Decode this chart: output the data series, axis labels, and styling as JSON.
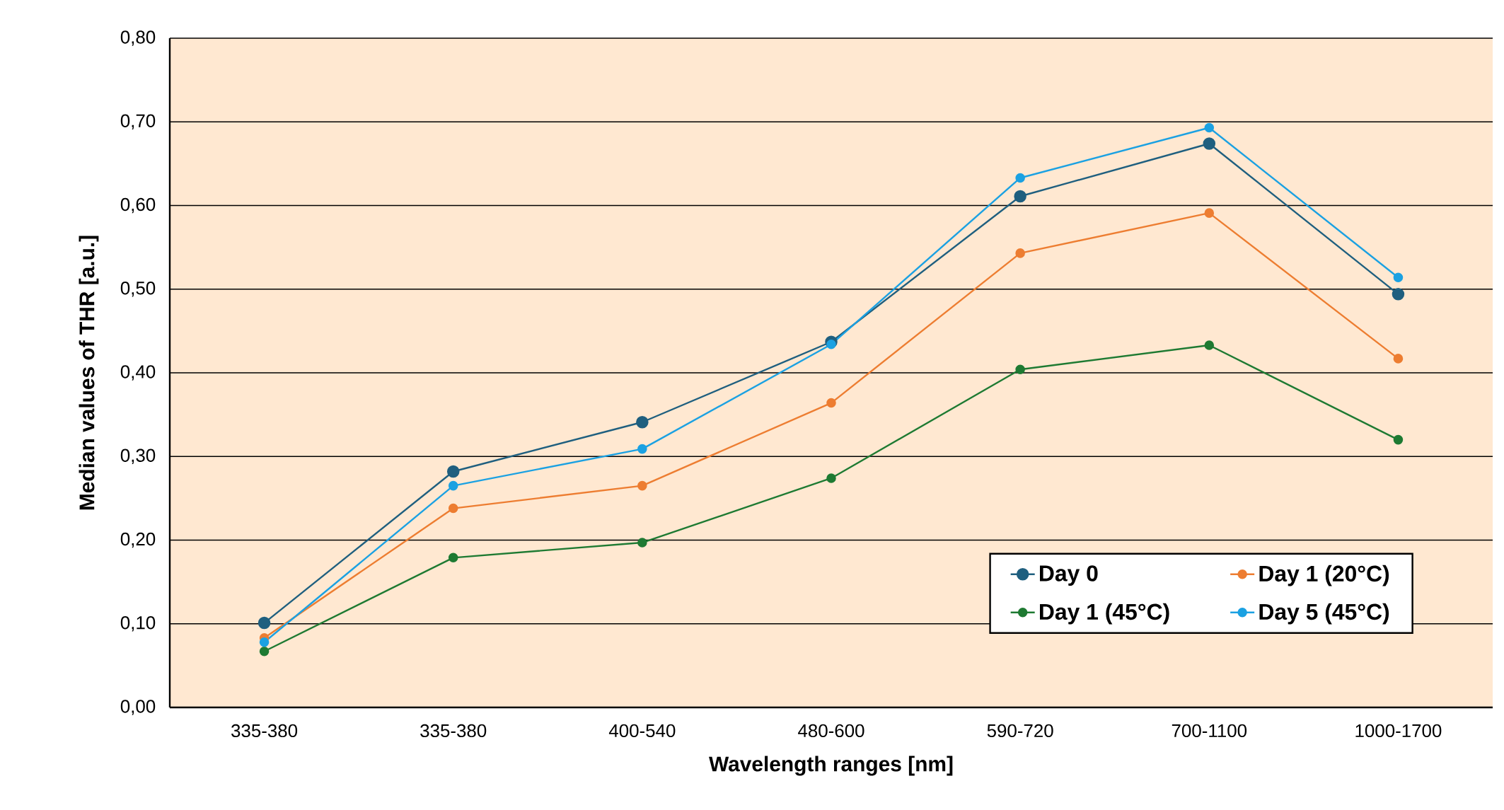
{
  "chart_data": {
    "type": "line",
    "xlabel": "Wavelength ranges [nm]",
    "ylabel": "Median values of THR [a.u.]",
    "categories": [
      "335-380",
      "335-380",
      "400-540",
      "480-600",
      "590-720",
      "700-1100",
      "1000-1700"
    ],
    "series": [
      {
        "name": "Day 0",
        "color": "#1f5f7f",
        "values": [
          0.101,
          0.282,
          0.341,
          0.437,
          0.611,
          0.674,
          0.494
        ]
      },
      {
        "name": "Day 1 (20°C)",
        "color": "#ed7d31",
        "values": [
          0.083,
          0.238,
          0.265,
          0.364,
          0.543,
          0.591,
          0.417
        ]
      },
      {
        "name": "Day 1 (45°C)",
        "color": "#1e7a32",
        "values": [
          0.067,
          0.179,
          0.197,
          0.274,
          0.404,
          0.433,
          0.32
        ]
      },
      {
        "name": "Day 5 (45°C)",
        "color": "#1ba1e2",
        "values": [
          0.078,
          0.265,
          0.309,
          0.434,
          0.633,
          0.693,
          0.514
        ]
      }
    ],
    "ylim": [
      0,
      0.8
    ],
    "yticks": [
      {
        "value": 0,
        "label": "0,00"
      },
      {
        "value": 0.1,
        "label": "0,10"
      },
      {
        "value": 0.2,
        "label": "0,20"
      },
      {
        "value": 0.3,
        "label": "0,30"
      },
      {
        "value": 0.4,
        "label": "0,40"
      },
      {
        "value": 0.5,
        "label": "0,50"
      },
      {
        "value": 0.6,
        "label": "0,60"
      },
      {
        "value": 0.7,
        "label": "0,70"
      },
      {
        "value": 0.8,
        "label": "0,80"
      }
    ],
    "grid": "y",
    "legend": "bottom right",
    "marker": "circle",
    "line_style": "solid"
  }
}
